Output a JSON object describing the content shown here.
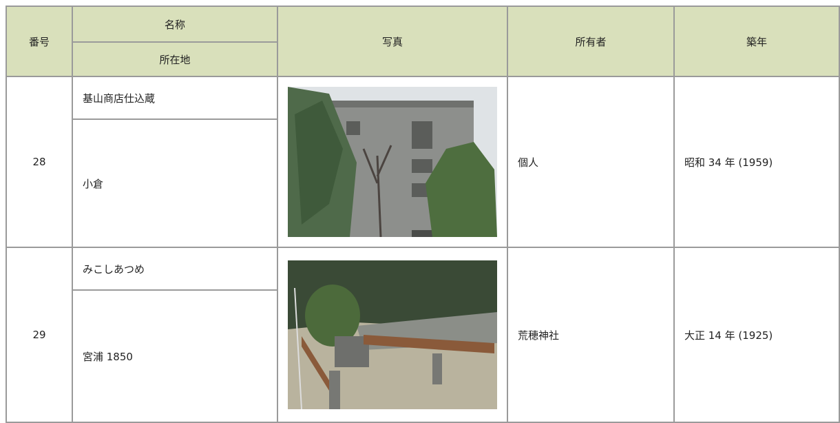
{
  "header": {
    "number": "番号",
    "name": "名称",
    "location": "所在地",
    "photo": "写真",
    "owner": "所有者",
    "year": "築年"
  },
  "rows": [
    {
      "number": "28",
      "name": "基山商店仕込蔵",
      "location": "小倉",
      "owner": "個人",
      "year": "昭和 34 年 (1959)"
    },
    {
      "number": "29",
      "name": "みこしあつめ",
      "location": "宮浦 1850",
      "owner": "荒穂神社",
      "year": "大正 14 年 (1925)"
    }
  ]
}
